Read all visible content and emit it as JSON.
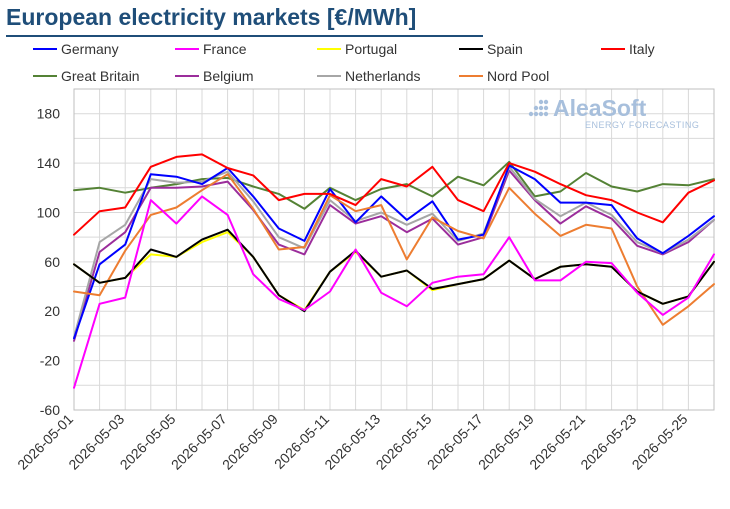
{
  "chart_data": {
    "type": "line",
    "title": "European electricity markets [€/MWh]",
    "xlabel": "",
    "ylabel": "",
    "ylim": [
      -60,
      200
    ],
    "yticks": [
      -60,
      -20,
      20,
      60,
      100,
      140,
      180
    ],
    "grid": true,
    "legend_position": "top",
    "x": [
      "2026-05-01",
      "2026-05-02",
      "2026-05-03",
      "2026-05-04",
      "2026-05-05",
      "2026-05-06",
      "2026-05-07",
      "2026-05-08",
      "2026-05-09",
      "2026-05-10",
      "2026-05-11",
      "2026-05-12",
      "2026-05-13",
      "2026-05-14",
      "2026-05-15",
      "2026-05-16",
      "2026-05-17",
      "2026-05-18",
      "2026-05-19",
      "2026-05-20",
      "2026-05-21",
      "2026-05-22",
      "2026-05-23",
      "2026-05-24",
      "2026-05-25",
      "2026-05-26"
    ],
    "xticks": [
      "2026-05-01",
      "2026-05-03",
      "2026-05-05",
      "2026-05-07",
      "2026-05-09",
      "2026-05-11",
      "2026-05-13",
      "2026-05-15",
      "2026-05-17",
      "2026-05-19",
      "2026-05-21",
      "2026-05-23",
      "2026-05-25"
    ],
    "series": [
      {
        "name": "Great Britain",
        "color": "#548235",
        "values": [
          118,
          120,
          116,
          120,
          123,
          127,
          128,
          121,
          115,
          103,
          120,
          110,
          119,
          123,
          113,
          129,
          122,
          141,
          113,
          117,
          132,
          121,
          117,
          123,
          122,
          127
        ]
      },
      {
        "name": "Belgium",
        "color": "#9b2d9b",
        "values": [
          -4,
          68,
          84,
          120,
          120,
          121,
          125,
          102,
          74,
          66,
          106,
          91,
          97,
          84,
          95,
          74,
          80,
          134,
          110,
          91,
          105,
          95,
          73,
          66,
          76,
          94
        ]
      },
      {
        "name": "Netherlands",
        "color": "#a6a6a6",
        "values": [
          -1,
          76,
          90,
          127,
          124,
          125,
          133,
          109,
          80,
          71,
          110,
          93,
          100,
          90,
          99,
          77,
          83,
          137,
          111,
          97,
          108,
          98,
          76,
          67,
          78,
          94
        ]
      },
      {
        "name": "Germany",
        "color": "#0000ff",
        "values": [
          -2,
          58,
          74,
          131,
          129,
          123,
          136,
          113,
          87,
          77,
          119,
          92,
          113,
          94,
          109,
          78,
          82,
          138,
          127,
          108,
          108,
          106,
          79,
          67,
          81,
          97
        ]
      },
      {
        "name": "Nord Pool",
        "color": "#ed7d31",
        "values": [
          36,
          33,
          69,
          98,
          104,
          118,
          131,
          103,
          70,
          72,
          114,
          101,
          106,
          62,
          96,
          85,
          79,
          120,
          99,
          81,
          90,
          87,
          40,
          9,
          24,
          42
        ]
      },
      {
        "name": "Italy",
        "color": "#ff0000",
        "values": [
          82,
          101,
          104,
          137,
          145,
          147,
          136,
          130,
          110,
          115,
          115,
          106,
          127,
          121,
          137,
          110,
          101,
          140,
          133,
          123,
          114,
          110,
          100,
          92,
          116,
          126
        ]
      },
      {
        "name": "Portugal",
        "color": "#ffff00",
        "values": [
          58,
          43,
          47,
          66,
          64,
          76,
          84,
          64,
          33,
          21,
          52,
          68,
          48,
          53,
          37,
          42,
          46,
          61,
          46,
          56,
          58,
          56,
          36,
          26,
          32,
          60
        ]
      },
      {
        "name": "Spain",
        "color": "#000000",
        "values": [
          58,
          43,
          47,
          70,
          64,
          78,
          86,
          64,
          33,
          20,
          52,
          69,
          48,
          53,
          38,
          42,
          46,
          61,
          46,
          56,
          58,
          56,
          36,
          26,
          32,
          60
        ]
      },
      {
        "name": "France",
        "color": "#ff00ff",
        "values": [
          -42,
          26,
          31,
          110,
          91,
          113,
          98,
          50,
          30,
          21,
          36,
          70,
          35,
          24,
          43,
          48,
          50,
          80,
          45,
          45,
          60,
          59,
          35,
          17,
          31,
          66
        ]
      }
    ]
  },
  "legend": [
    {
      "name": "Germany",
      "color": "#0000ff"
    },
    {
      "name": "France",
      "color": "#ff00ff"
    },
    {
      "name": "Portugal",
      "color": "#ffff00"
    },
    {
      "name": "Spain",
      "color": "#000000"
    },
    {
      "name": "Italy",
      "color": "#ff0000"
    },
    {
      "name": "Great Britain",
      "color": "#548235"
    },
    {
      "name": "Belgium",
      "color": "#9b2d9b"
    },
    {
      "name": "Netherlands",
      "color": "#a6a6a6"
    },
    {
      "name": "Nord Pool",
      "color": "#ed7d31"
    }
  ],
  "watermark": {
    "name": "AleaSoft",
    "subtitle": "ENERGY FORECASTING"
  },
  "colors": {
    "title": "#1f4e79",
    "grid": "#d9d9d9",
    "axis": "#bfbfbf",
    "watermark": "#a7bfdc"
  }
}
